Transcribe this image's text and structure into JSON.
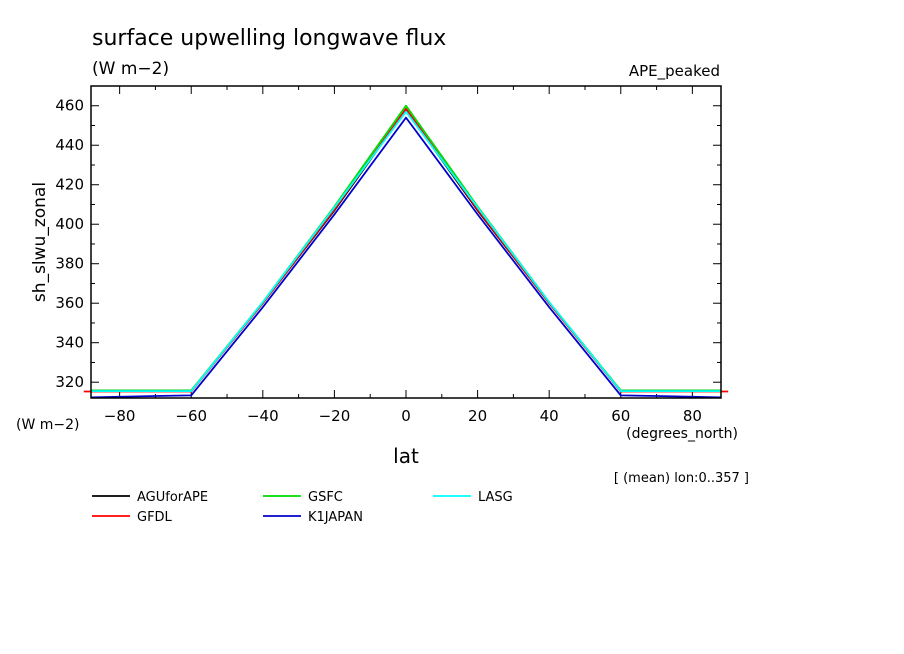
{
  "chart_data": {
    "type": "line",
    "title": "surface upwelling longwave flux",
    "subtitle": "(W m−2)",
    "experiment": "APE_peaked",
    "ylabel": "sh_slwu_zonal",
    "xlabel": "lat",
    "x_units": "(degrees_north)",
    "y_units": "(W m−2)",
    "footnote": "[ (mean) lon:0..357 ]",
    "xlim": [
      -88,
      88
    ],
    "ylim": [
      312,
      470
    ],
    "x_ticks": [
      -80,
      -60,
      -40,
      -20,
      0,
      20,
      40,
      60,
      80
    ],
    "x_tick_labels": [
      "−80",
      "−60",
      "−40",
      "−20",
      "0",
      "20",
      "40",
      "60",
      "80"
    ],
    "y_ticks": [
      320,
      340,
      360,
      380,
      400,
      420,
      440,
      460
    ],
    "y_tick_labels": [
      "320",
      "340",
      "360",
      "380",
      "400",
      "420",
      "440",
      "460"
    ],
    "grid": false,
    "legend_position": "bottom",
    "series": [
      {
        "name": "AGUforAPE",
        "color": "#000000",
        "x": [
          -88,
          -60,
          -40,
          -20,
          0,
          20,
          40,
          60,
          88
        ],
        "y": [
          315.7,
          315.7,
          360,
          407,
          458,
          407,
          360,
          315.7,
          315.7
        ]
      },
      {
        "name": "GFDL",
        "color": "#ff0000",
        "x": [
          -90,
          -60,
          -40,
          -20,
          0,
          20,
          40,
          60,
          90
        ],
        "y": [
          315.3,
          315.3,
          360,
          407.5,
          458.5,
          407.5,
          360,
          315.3,
          315.3
        ]
      },
      {
        "name": "GSFC",
        "color": "#00dd00",
        "x": [
          -88,
          -60,
          -40,
          -20,
          0,
          20,
          40,
          60,
          88
        ],
        "y": [
          315.8,
          315.8,
          360.5,
          409,
          460,
          409,
          360.5,
          315.8,
          315.8
        ]
      },
      {
        "name": "K1JAPAN",
        "color": "#0000cc",
        "x": [
          -88,
          -80,
          -70,
          -60,
          -40,
          -20,
          0,
          20,
          40,
          60,
          70,
          80,
          88
        ],
        "y": [
          312.3,
          312.6,
          313.0,
          313.3,
          358,
          405,
          454,
          405,
          358,
          313.3,
          313.0,
          312.6,
          312.3
        ]
      },
      {
        "name": "LASG",
        "color": "#00ffff",
        "x": [
          -88,
          -60,
          -40,
          -20,
          0,
          20,
          40,
          60,
          88
        ],
        "y": [
          315.5,
          315.5,
          360.5,
          408.5,
          457,
          408.5,
          360.5,
          315.5,
          315.5
        ]
      }
    ]
  }
}
